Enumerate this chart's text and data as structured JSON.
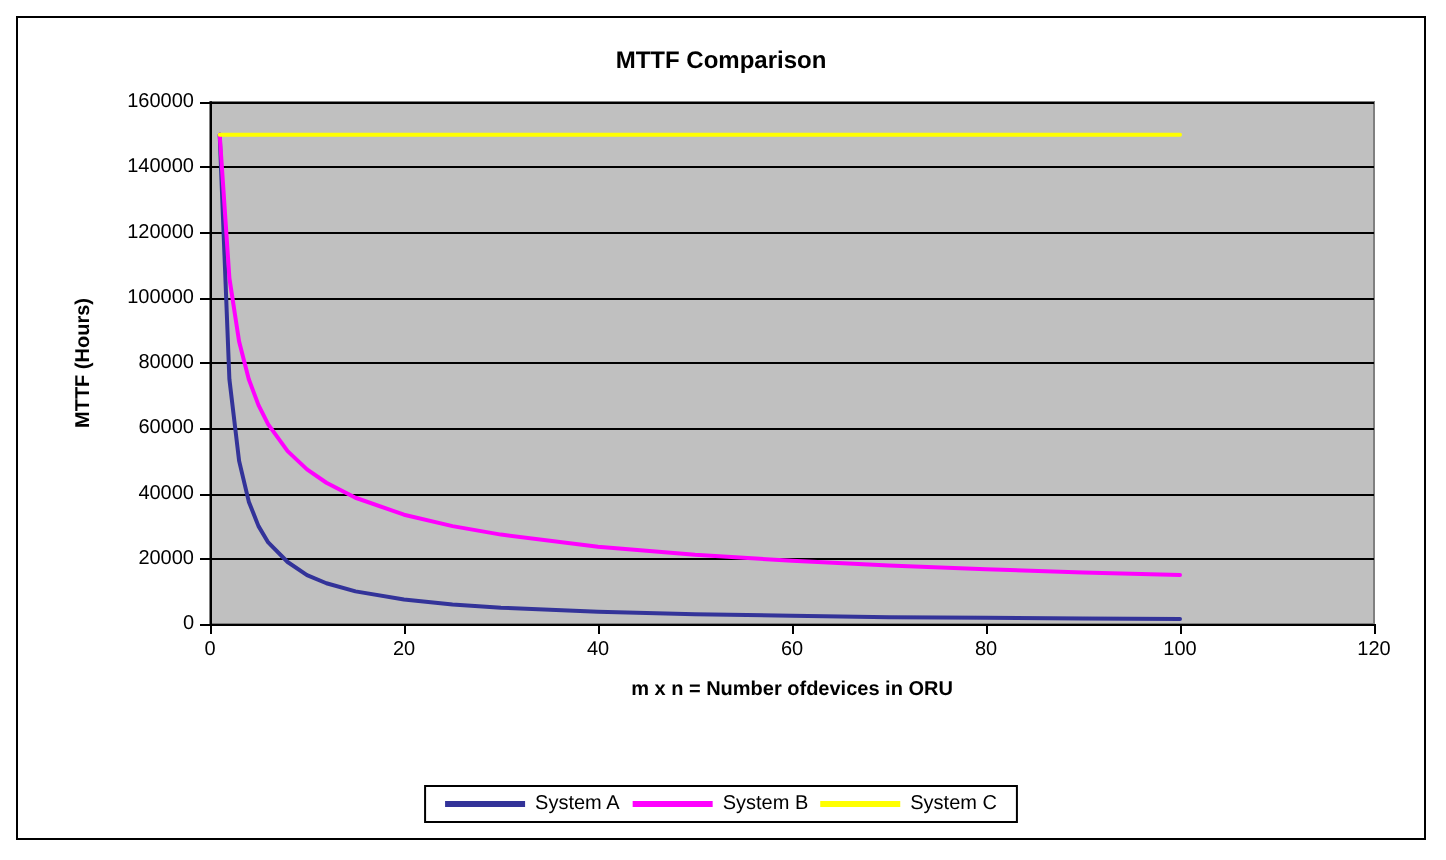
{
  "chart_data": {
    "type": "line",
    "title": "MTTF Comparison",
    "xlabel": "m x n = Number ofdevices in ORU",
    "ylabel": "MTTF (Hours)",
    "x": [
      1,
      2,
      3,
      4,
      5,
      6,
      8,
      10,
      12,
      15,
      20,
      25,
      30,
      40,
      50,
      60,
      70,
      80,
      90,
      100
    ],
    "series": [
      {
        "name": "System A",
        "color": "#333399",
        "values": [
          150000,
          75000,
          50000,
          37500,
          30000,
          25000,
          19000,
          15000,
          12500,
          10000,
          7500,
          6000,
          5000,
          3750,
          3000,
          2500,
          2100,
          1900,
          1700,
          1500
        ]
      },
      {
        "name": "System B",
        "color": "#ff00ff",
        "values": [
          150000,
          106000,
          86600,
          75000,
          67100,
          61200,
          53000,
          47400,
          43300,
          38700,
          33500,
          30000,
          27400,
          23700,
          21200,
          19400,
          17900,
          16800,
          15800,
          15000
        ]
      },
      {
        "name": "System C",
        "color": "#ffff00",
        "x": [
          1,
          100
        ],
        "values": [
          150000,
          150000
        ]
      }
    ],
    "xlim": [
      0,
      120
    ],
    "xticks": [
      0,
      20,
      40,
      60,
      80,
      100,
      120
    ],
    "ylim": [
      0,
      160000
    ],
    "yticks": [
      0,
      20000,
      40000,
      60000,
      80000,
      100000,
      120000,
      140000,
      160000
    ],
    "grid": "y",
    "legend": "bottom",
    "marker": "none",
    "line_style": "solid"
  }
}
